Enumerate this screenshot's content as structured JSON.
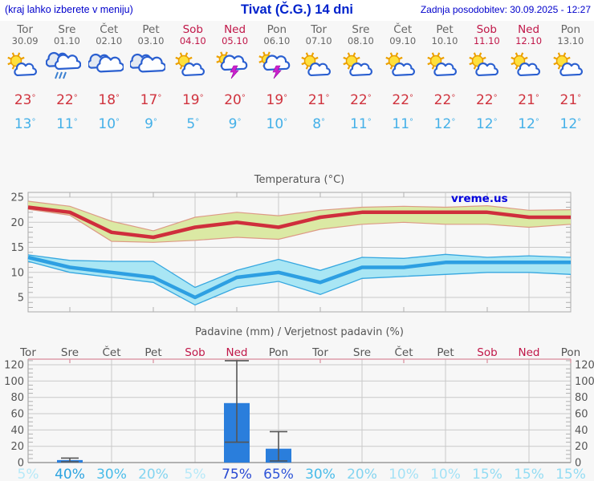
{
  "header": {
    "left_note": "(kraj lahko izberete v meniju)",
    "title": "Tivat (Č.G.) 14 dni",
    "updated": "Zadnja posodobitev: 30.09.2025 - 12:27"
  },
  "deg": "°",
  "colors": {
    "weekday": "#666666",
    "weekend": "#c01648",
    "max_temp": "#d0333e",
    "min_temp": "#44b0e8",
    "grid": "#c9c9c9",
    "minor_tick": "#b0b0b0",
    "axis_text": "#555555",
    "border": "#a8a8a8",
    "header_blue": "#0000cc",
    "pink_axis": "#d98a9a"
  },
  "days": [
    {
      "name": "Tor",
      "date": "30.09",
      "weekend": false,
      "icon": "partly-sunny",
      "max": "23",
      "min": "13"
    },
    {
      "name": "Sre",
      "date": "01.10",
      "weekend": false,
      "icon": "rain",
      "max": "22",
      "min": "11"
    },
    {
      "name": "Čet",
      "date": "02.10",
      "weekend": false,
      "icon": "cloudy",
      "max": "18",
      "min": "10"
    },
    {
      "name": "Pet",
      "date": "03.10",
      "weekend": false,
      "icon": "cloudy",
      "max": "17",
      "min": "9"
    },
    {
      "name": "Sob",
      "date": "04.10",
      "weekend": true,
      "icon": "partly-sunny",
      "max": "19",
      "min": "5"
    },
    {
      "name": "Ned",
      "date": "05.10",
      "weekend": true,
      "icon": "thunderstorm",
      "max": "20",
      "min": "9"
    },
    {
      "name": "Pon",
      "date": "06.10",
      "weekend": false,
      "icon": "thunderstorm",
      "max": "19",
      "min": "10"
    },
    {
      "name": "Tor",
      "date": "07.10",
      "weekend": false,
      "icon": "partly-sunny",
      "max": "21",
      "min": "8"
    },
    {
      "name": "Sre",
      "date": "08.10",
      "weekend": false,
      "icon": "partly-sunny",
      "max": "22",
      "min": "11"
    },
    {
      "name": "Čet",
      "date": "09.10",
      "weekend": false,
      "icon": "partly-sunny",
      "max": "22",
      "min": "11"
    },
    {
      "name": "Pet",
      "date": "10.10",
      "weekend": false,
      "icon": "partly-sunny",
      "max": "22",
      "min": "12"
    },
    {
      "name": "Sob",
      "date": "11.10",
      "weekend": true,
      "icon": "partly-sunny",
      "max": "22",
      "min": "12"
    },
    {
      "name": "Ned",
      "date": "12.10",
      "weekend": true,
      "icon": "partly-sunny",
      "max": "21",
      "min": "12"
    },
    {
      "name": "Pon",
      "date": "13.10",
      "weekend": false,
      "icon": "partly-sunny",
      "max": "21",
      "min": "12"
    }
  ],
  "temperature_chart": {
    "title": "Temperatura (°C)",
    "watermark": "vreme.us",
    "watermark_color": "#0000dd",
    "y_ticks": [
      5,
      10,
      15,
      20,
      25
    ],
    "max_color": "#cf2e3c",
    "max_band_color": "#dbe9a4",
    "max_band_edge": "#dd9a86",
    "min_color": "#2d9fe2",
    "min_band_color": "#a9e6f4",
    "min_band_edge": "#36a7e0",
    "max": [
      23,
      22,
      18,
      17,
      19,
      20,
      19,
      21,
      22,
      22,
      22,
      22,
      21,
      21
    ],
    "max_hi": [
      24.2,
      23.2,
      20.2,
      18.3,
      21.0,
      22.0,
      21.3,
      22.4,
      23.0,
      23.2,
      23.0,
      23.3,
      22.4,
      22.5
    ],
    "max_lo": [
      22.6,
      21.4,
      16.2,
      16.0,
      16.4,
      17.0,
      16.6,
      18.6,
      19.6,
      20.0,
      19.6,
      19.6,
      19.0,
      19.6
    ],
    "min": [
      13,
      11,
      10,
      9,
      5,
      9,
      10,
      8,
      11,
      11,
      12,
      12,
      12,
      12
    ],
    "min_hi": [
      13.5,
      12.4,
      12.2,
      12.2,
      7.0,
      10.4,
      12.6,
      10.4,
      13.0,
      12.8,
      13.6,
      13.0,
      13.3,
      13.0
    ],
    "min_lo": [
      12.2,
      10.0,
      9.0,
      8.0,
      3.5,
      7.0,
      8.2,
      5.6,
      8.8,
      9.2,
      9.6,
      10.0,
      10.0,
      9.6
    ]
  },
  "precip_chart": {
    "title": "Padavine (mm) / Verjetnost padavin (%)",
    "y_ticks": [
      0,
      20,
      40,
      60,
      80,
      100,
      120
    ],
    "bar_color": "#2a7edc",
    "whisker_color": "#555555",
    "bars": [
      {
        "day_index": 1,
        "value": 3,
        "whisker_low": 1,
        "whisker_high": 5.5
      },
      {
        "day_index": 5,
        "value": 73,
        "whisker_low": 25,
        "whisker_high": 125
      },
      {
        "day_index": 6,
        "value": 17,
        "whisker_low": 2,
        "whisker_high": 38
      }
    ],
    "probabilities": [
      {
        "label": "5%",
        "color": "#b7e9f8"
      },
      {
        "label": "40%",
        "color": "#2ba3e0"
      },
      {
        "label": "30%",
        "color": "#49bce9"
      },
      {
        "label": "20%",
        "color": "#83d4f0"
      },
      {
        "label": "5%",
        "color": "#b7e9f8"
      },
      {
        "label": "75%",
        "color": "#2849d2"
      },
      {
        "label": "65%",
        "color": "#2f55d8"
      },
      {
        "label": "30%",
        "color": "#49bce9"
      },
      {
        "label": "20%",
        "color": "#83d4f0"
      },
      {
        "label": "10%",
        "color": "#a5e2f6"
      },
      {
        "label": "10%",
        "color": "#a5e2f6"
      },
      {
        "label": "15%",
        "color": "#93dcf3"
      },
      {
        "label": "15%",
        "color": "#93dcf3"
      },
      {
        "label": "15%",
        "color": "#93dcf3"
      }
    ]
  },
  "chart_data": [
    {
      "type": "line",
      "title": "Temperatura (°C)",
      "categories": [
        "Tor 30.09",
        "Sre 01.10",
        "Čet 02.10",
        "Pet 03.10",
        "Sob 04.10",
        "Ned 05.10",
        "Pon 06.10",
        "Tor 07.10",
        "Sre 08.10",
        "Čet 09.10",
        "Pet 10.10",
        "Sob 11.10",
        "Ned 12.10",
        "Pon 13.10"
      ],
      "series": [
        {
          "name": "Max temperatura",
          "values": [
            23,
            22,
            18,
            17,
            19,
            20,
            19,
            21,
            22,
            22,
            22,
            22,
            21,
            21
          ]
        },
        {
          "name": "Min temperatura",
          "values": [
            13,
            11,
            10,
            9,
            5,
            9,
            10,
            8,
            11,
            11,
            12,
            12,
            12,
            12
          ]
        }
      ],
      "ylim": [
        2,
        26
      ],
      "grid": true,
      "annotations": [
        "vreme.us"
      ]
    },
    {
      "type": "bar",
      "title": "Padavine (mm) / Verjetnost padavin (%)",
      "categories": [
        "Tor",
        "Sre",
        "Čet",
        "Pet",
        "Sob",
        "Ned",
        "Pon",
        "Tor",
        "Sre",
        "Čet",
        "Pet",
        "Sob",
        "Ned",
        "Pon"
      ],
      "values": [
        0,
        3,
        0,
        0,
        0,
        73,
        17,
        0,
        0,
        0,
        0,
        0,
        0,
        0
      ],
      "probability_percent": [
        5,
        40,
        30,
        20,
        5,
        75,
        65,
        30,
        20,
        10,
        10,
        15,
        15,
        15
      ],
      "ylim": [
        0,
        120
      ],
      "grid": true
    }
  ]
}
